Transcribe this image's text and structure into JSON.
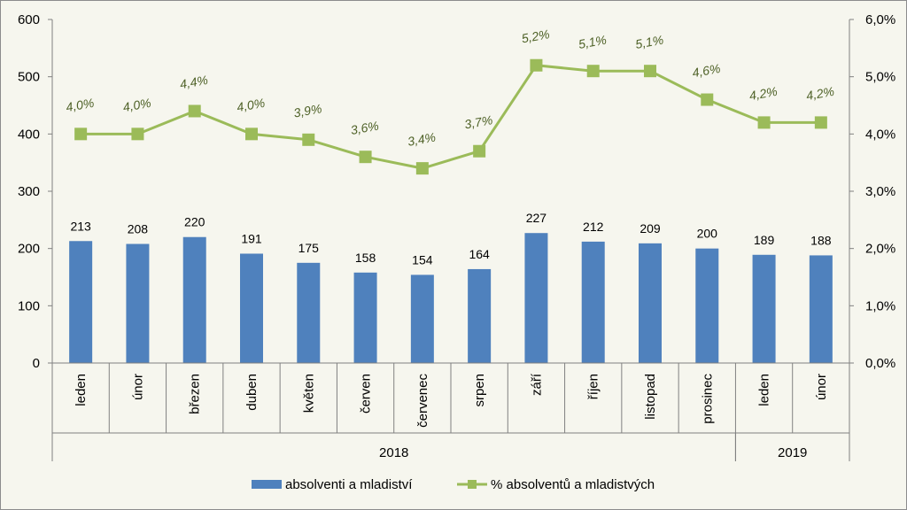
{
  "chart_data": {
    "type": "bar",
    "categories": [
      "leden",
      "únor",
      "březen",
      "duben",
      "květen",
      "červen",
      "červenec",
      "srpen",
      "září",
      "říjen",
      "listopad",
      "prosinec",
      "leden",
      "únor"
    ],
    "groups": [
      {
        "label": "2018",
        "count": 12
      },
      {
        "label": "2019",
        "count": 2
      }
    ],
    "series": [
      {
        "name": "absolventi a mladiství",
        "type": "bar",
        "axis": "left",
        "color": "#4f81bd",
        "values": [
          213,
          208,
          220,
          191,
          175,
          158,
          154,
          164,
          227,
          212,
          209,
          200,
          189,
          188
        ],
        "labels": [
          "213",
          "208",
          "220",
          "191",
          "175",
          "158",
          "154",
          "164",
          "227",
          "212",
          "209",
          "200",
          "189",
          "188"
        ]
      },
      {
        "name": "% absolventů a mladistvých",
        "type": "line",
        "axis": "right",
        "color": "#9bbb59",
        "values": [
          4.0,
          4.0,
          4.4,
          4.0,
          3.9,
          3.6,
          3.4,
          3.7,
          5.2,
          5.1,
          5.1,
          4.6,
          4.2,
          4.2
        ],
        "labels": [
          "4,0%",
          "4,0%",
          "4,4%",
          "4,0%",
          "3,9%",
          "3,6%",
          "3,4%",
          "3,7%",
          "5,2%",
          "5,1%",
          "5,1%",
          "4,6%",
          "4,2%",
          "4,2%"
        ]
      }
    ],
    "y_left": {
      "min": 0,
      "max": 600,
      "ticks": [
        "0",
        "100",
        "200",
        "300",
        "400",
        "500",
        "600"
      ]
    },
    "y_right": {
      "min": 0,
      "max": 6,
      "ticks": [
        "0,0%",
        "1,0%",
        "2,0%",
        "3,0%",
        "4,0%",
        "5,0%",
        "6,0%"
      ]
    },
    "legend_position": "bottom",
    "grid": false
  }
}
